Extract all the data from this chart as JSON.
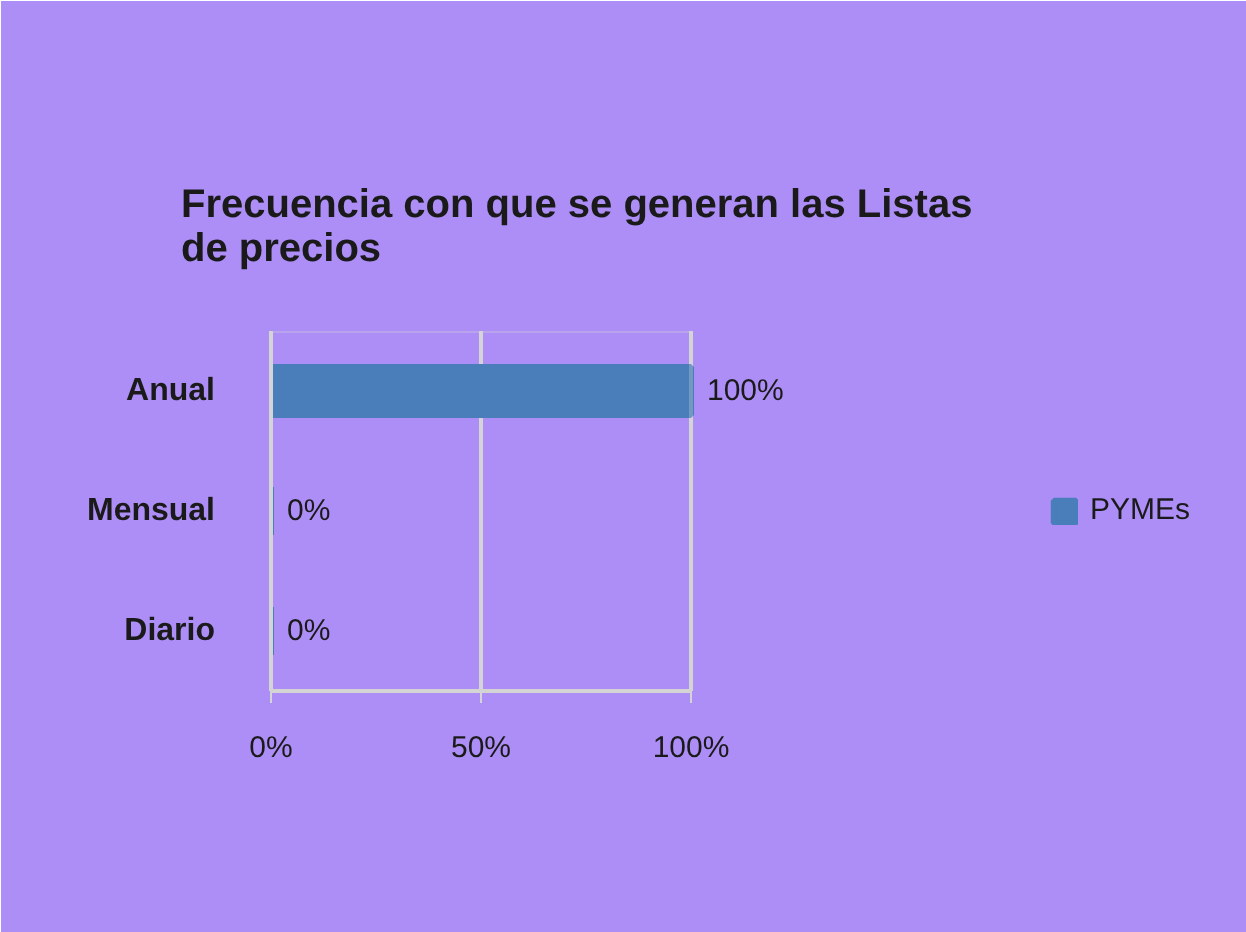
{
  "chart_data": {
    "type": "bar",
    "orientation": "horizontal",
    "title": "Frecuencia con que se generan las Listas de precios",
    "categories": [
      "Anual",
      "Mensual",
      "Diario"
    ],
    "series": [
      {
        "name": "PYMEs",
        "color": "#4a7ebb",
        "values": [
          100,
          0,
          0
        ],
        "value_labels": [
          "100%",
          "0%",
          "0%"
        ]
      }
    ],
    "xlim": [
      0,
      100
    ],
    "xticks": [
      {
        "value": 0,
        "label": "0%"
      },
      {
        "value": 50,
        "label": "50%"
      },
      {
        "value": 100,
        "label": "100%"
      }
    ],
    "grid": "x",
    "legend": "right"
  }
}
